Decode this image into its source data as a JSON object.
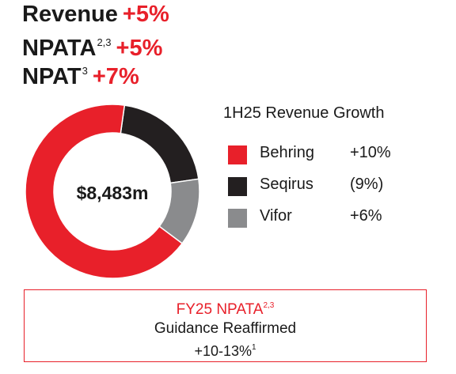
{
  "headline_metrics": [
    {
      "label": "Revenue",
      "sup": "",
      "value": "+5%"
    },
    {
      "label": "NPATA",
      "sup": "2,3",
      "value": "+5%"
    },
    {
      "label": "NPAT",
      "sup": "3",
      "value": "+7%"
    }
  ],
  "colors": {
    "accent": "#e8202a",
    "dark": "#231f20",
    "grey": "#8a8b8d"
  },
  "chart_data": {
    "type": "pie",
    "title": "1H25 Revenue Growth",
    "center_label": "$8,483m",
    "slices": [
      {
        "name": "Behring",
        "growth": "+10%",
        "share": 0.67,
        "color": "#e8202a"
      },
      {
        "name": "Seqirus",
        "growth": "(9%)",
        "share": 0.205,
        "color": "#231f20"
      },
      {
        "name": "Vifor",
        "growth": "+6%",
        "share": 0.125,
        "color": "#8a8b8d"
      }
    ]
  },
  "guidance": {
    "title": "FY25 NPATA",
    "title_sup": "2,3",
    "subtitle": "Guidance Reaffirmed",
    "range": "+10-13%",
    "range_sup": "1"
  }
}
